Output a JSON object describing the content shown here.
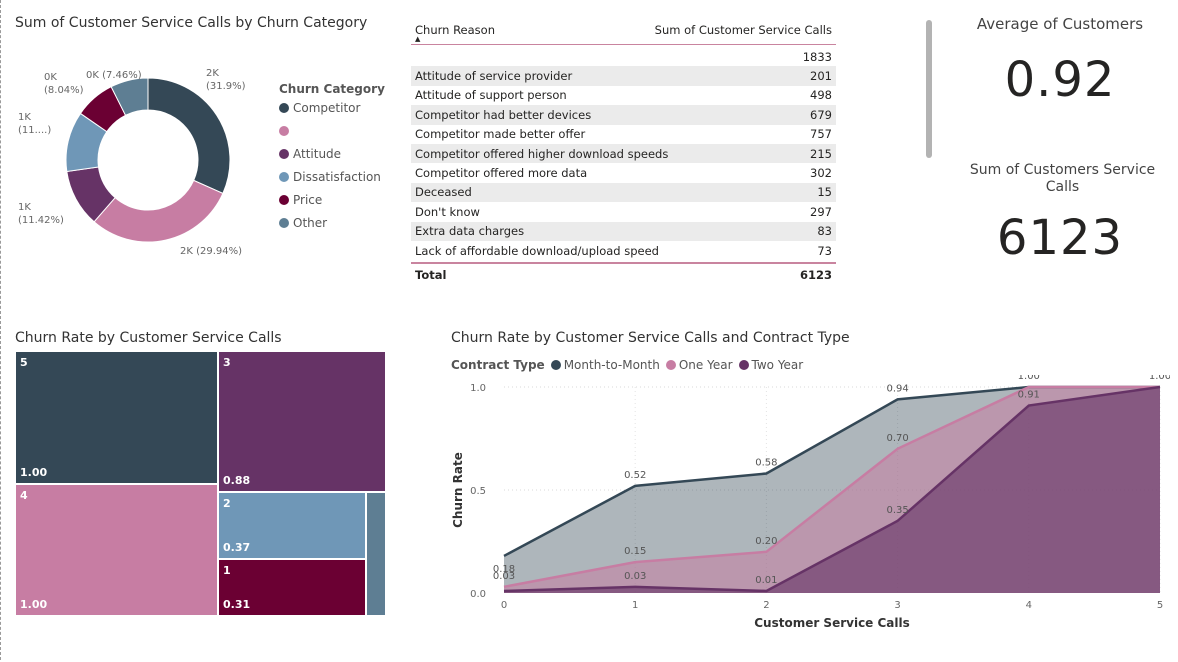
{
  "donut": {
    "title": "Sum of Customer Service Calls by Churn Category",
    "legend_title": "Churn Category",
    "slices": [
      {
        "name": "Competitor",
        "value": 1953,
        "label": "2K\n(31.9%)",
        "color": "#344856"
      },
      {
        "name": "",
        "value": 1833,
        "label": "2K (29.94%)",
        "color": "#c77da3"
      },
      {
        "name": "Attitude",
        "value": 699,
        "label": "1K\n(11.42%)",
        "color": "#663366"
      },
      {
        "name": "Dissatisfaction",
        "value": 730,
        "label": "1K\n(11....)",
        "color": "#6f97b7"
      },
      {
        "name": "Price",
        "value": 492,
        "label": "0K\n(8.04%)",
        "color": "#6b0033"
      },
      {
        "name": "Other",
        "value": 457,
        "label": "0K (7.46%)",
        "color": "#5e7e93"
      }
    ]
  },
  "table": {
    "col1": "Churn Reason",
    "col2": "Sum of Customer Service Calls",
    "rows": [
      {
        "reason": "",
        "calls": "1833"
      },
      {
        "reason": "Attitude of service provider",
        "calls": "201"
      },
      {
        "reason": "Attitude of support person",
        "calls": "498"
      },
      {
        "reason": "Competitor had better devices",
        "calls": "679"
      },
      {
        "reason": "Competitor made better offer",
        "calls": "757"
      },
      {
        "reason": "Competitor offered higher download speeds",
        "calls": "215"
      },
      {
        "reason": "Competitor offered more data",
        "calls": "302"
      },
      {
        "reason": "Deceased",
        "calls": "15"
      },
      {
        "reason": "Don't know",
        "calls": "297"
      },
      {
        "reason": "Extra data charges",
        "calls": "83"
      },
      {
        "reason": "Lack of affordable download/upload speed",
        "calls": "73"
      }
    ],
    "total_label": "Total",
    "total_value": "6123"
  },
  "cards": {
    "avg_title": "Average of Customers",
    "avg_value": "0.92",
    "sum_title": "Sum of Customers Service Calls",
    "sum_value": "6123"
  },
  "treemap": {
    "title": "Churn Rate by Customer Service Calls",
    "cells": [
      {
        "label": "5",
        "value": "1.00",
        "color": "#344856"
      },
      {
        "label": "4",
        "value": "1.00",
        "color": "#c77da3"
      },
      {
        "label": "3",
        "value": "0.88",
        "color": "#663366"
      },
      {
        "label": "2",
        "value": "0.37",
        "color": "#6f97b7"
      },
      {
        "label": "1",
        "value": "0.31",
        "color": "#6b0033"
      },
      {
        "label": "",
        "value": "",
        "color": "#5e7e93"
      }
    ]
  },
  "area": {
    "title": "Churn Rate by Customer Service Calls and Contract Type",
    "legend_title": "Contract Type"
  },
  "chart_data": {
    "type": "area",
    "title": "Churn Rate by Customer Service Calls and Contract Type",
    "xlabel": "Customer Service Calls",
    "ylabel": "Churn Rate",
    "x": [
      0,
      1,
      2,
      3,
      4,
      5
    ],
    "ylim": [
      0,
      1.0
    ],
    "yticks": [
      "0.0",
      "0.5",
      "1.0"
    ],
    "legend_title": "Contract Type",
    "series": [
      {
        "name": "Month-to-Month",
        "color": "#344856",
        "values": [
          0.18,
          0.52,
          0.58,
          0.94,
          1.0,
          1.0
        ],
        "labels": [
          "0.18",
          "0.52",
          "0.58",
          "0.94",
          "",
          ""
        ]
      },
      {
        "name": "One Year",
        "color": "#c77da3",
        "values": [
          0.03,
          0.15,
          0.2,
          0.7,
          1.0,
          1.0
        ],
        "labels": [
          "0.03",
          "0.15",
          "0.20",
          "0.70",
          "1.00",
          ""
        ]
      },
      {
        "name": "Two Year",
        "color": "#663366",
        "values": [
          0.01,
          0.03,
          0.01,
          0.35,
          0.91,
          1.0
        ],
        "labels": [
          "",
          "0.03",
          "0.01",
          "0.35",
          "0.91",
          "1.00"
        ]
      }
    ]
  }
}
